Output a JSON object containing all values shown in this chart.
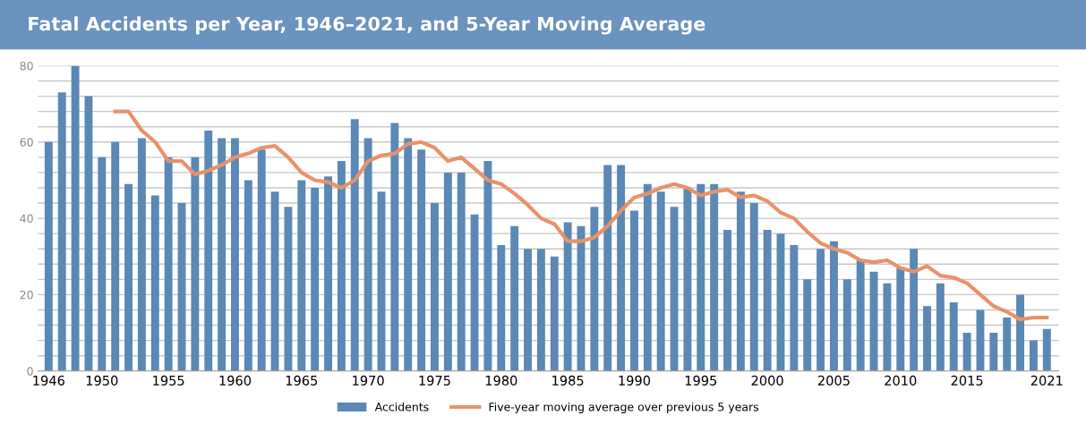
{
  "chart_data": {
    "type": "bar",
    "title": "Fatal Accidents per Year, 1946–2021, and 5-Year Moving Average",
    "x": [
      1946,
      1947,
      1948,
      1949,
      1950,
      1951,
      1952,
      1953,
      1954,
      1955,
      1956,
      1957,
      1958,
      1959,
      1960,
      1961,
      1962,
      1963,
      1964,
      1965,
      1966,
      1967,
      1968,
      1969,
      1970,
      1971,
      1972,
      1973,
      1974,
      1975,
      1976,
      1977,
      1978,
      1979,
      1980,
      1981,
      1982,
      1983,
      1984,
      1985,
      1986,
      1987,
      1988,
      1989,
      1990,
      1991,
      1992,
      1993,
      1994,
      1995,
      1996,
      1997,
      1998,
      1999,
      2000,
      2001,
      2002,
      2003,
      2004,
      2005,
      2006,
      2007,
      2008,
      2009,
      2010,
      2011,
      2012,
      2013,
      2014,
      2015,
      2016,
      2017,
      2018,
      2019,
      2020,
      2021
    ],
    "series": [
      {
        "name": "Accidents",
        "color": "#5b88b5",
        "values": [
          60,
          73,
          80,
          72,
          56,
          60,
          49,
          61,
          46,
          56,
          44,
          56,
          63,
          61,
          61,
          50,
          58,
          47,
          43,
          50,
          48,
          51,
          55,
          66,
          61,
          47,
          65,
          61,
          58,
          44,
          52,
          52,
          41,
          55,
          33,
          38,
          32,
          32,
          30,
          39,
          38,
          43,
          54,
          54,
          42,
          49,
          47,
          43,
          48,
          49,
          49,
          37,
          47,
          44,
          37,
          36,
          33,
          24,
          32,
          34,
          24,
          29,
          26,
          23,
          27,
          32,
          17,
          23,
          18,
          10,
          16,
          10,
          14,
          20,
          8,
          11
        ]
      },
      {
        "name": "Five-year moving average over previous 5 years",
        "type": "line",
        "color": "#e8926a",
        "x": [
          1951,
          1952,
          1953,
          1954,
          1955,
          1956,
          1957,
          1958,
          1959,
          1960,
          1961,
          1962,
          1963,
          1964,
          1965,
          1966,
          1967,
          1968,
          1969,
          1970,
          1971,
          1972,
          1973,
          1974,
          1975,
          1976,
          1977,
          1978,
          1979,
          1980,
          1981,
          1982,
          1983,
          1984,
          1985,
          1986,
          1987,
          1988,
          1989,
          1990,
          1991,
          1992,
          1993,
          1994,
          1995,
          1996,
          1997,
          1998,
          1999,
          2000,
          2001,
          2002,
          2003,
          2004,
          2005,
          2006,
          2007,
          2008,
          2009,
          2010,
          2011,
          2012,
          2013,
          2014,
          2015,
          2016,
          2017,
          2018,
          2019,
          2020,
          2021
        ],
        "values": [
          68,
          68,
          63,
          60,
          55,
          55,
          51.5,
          52.5,
          54,
          56,
          57,
          58.5,
          59,
          56,
          52,
          50,
          49.5,
          48,
          50,
          55,
          56.5,
          57,
          59.5,
          60,
          58.5,
          55,
          56,
          53,
          50,
          49,
          46.5,
          43.5,
          40,
          38.5,
          34,
          34,
          35,
          38,
          42,
          45.5,
          46.5,
          48,
          49,
          48,
          46,
          47,
          47.5,
          45.5,
          46,
          44.5,
          41.5,
          40,
          36.5,
          33.5,
          32,
          31,
          29,
          28.5,
          29,
          27,
          26,
          27.5,
          25,
          24.5,
          23,
          20,
          17,
          15.5,
          13.5,
          14,
          14
        ]
      }
    ],
    "xlim": [
      1945.2,
      2021.9
    ],
    "xticks": [
      1946,
      1950,
      1955,
      1960,
      1965,
      1970,
      1975,
      1980,
      1985,
      1990,
      1995,
      2000,
      2005,
      2010,
      2015,
      2021
    ],
    "ylim": [
      0,
      80
    ],
    "yticks": [
      0,
      {
        "value": 4,
        "label": null
      },
      {
        "value": 8,
        "label": null
      },
      {
        "value": 12,
        "label": null
      },
      {
        "value": 16,
        "label": null
      },
      20,
      {
        "value": 24,
        "label": null
      },
      {
        "value": 28,
        "label": null
      },
      {
        "value": 32,
        "label": null
      },
      {
        "value": 36,
        "label": null
      },
      40,
      {
        "value": 44,
        "label": null
      },
      {
        "value": 48,
        "label": null
      },
      {
        "value": 52,
        "label": null
      },
      {
        "value": 56,
        "label": null
      },
      60,
      {
        "value": 64,
        "label": null
      },
      {
        "value": 68,
        "label": null
      },
      {
        "value": 72,
        "label": null
      },
      {
        "value": 76,
        "label": null
      },
      80
    ],
    "grid": "y",
    "legend": "bottom",
    "marker": "none",
    "line_style": "solid"
  }
}
